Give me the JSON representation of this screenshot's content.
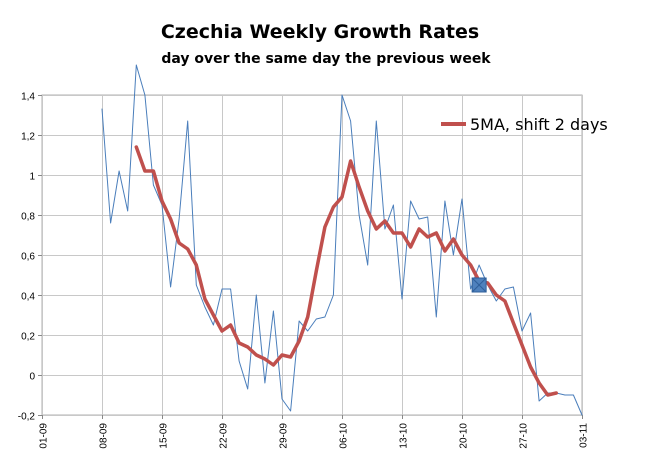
{
  "chart_data": {
    "type": "line",
    "title": "Czechia Weekly Growth Rates",
    "subtitle": "day over the same day the previous week",
    "xlabel": "",
    "ylabel": "",
    "ylim": [
      -0.2,
      1.4
    ],
    "yticks": [
      -0.2,
      0,
      0.2,
      0.4,
      0.6,
      0.8,
      1,
      1.2,
      1.4
    ],
    "ytick_labels": [
      "-0,2",
      "0",
      "0,2",
      "0,4",
      "0,6",
      "0,8",
      "1",
      "1,2",
      "1,4"
    ],
    "xlim": [
      0,
      63
    ],
    "xticks": [
      0,
      7,
      14,
      21,
      28,
      35,
      42,
      49,
      56,
      63
    ],
    "xtick_labels": [
      "01-09",
      "08-09",
      "15-09",
      "22-09",
      "29-09",
      "06-10",
      "13-10",
      "20-10",
      "27-10",
      "03-11"
    ],
    "grid": true,
    "legend": {
      "position": "top-right",
      "entries": [
        "5MA, shift 2 days"
      ]
    },
    "series": [
      {
        "name": "daily",
        "color": "#4a7ebb",
        "x": [
          7,
          8,
          9,
          10,
          11,
          12,
          13,
          14,
          15,
          16,
          17,
          18,
          19,
          20,
          21,
          22,
          23,
          24,
          25,
          26,
          27,
          28,
          29,
          30,
          31,
          32,
          33,
          34,
          35,
          36,
          37,
          38,
          39,
          40,
          41,
          42,
          43,
          44,
          45,
          46,
          47,
          48,
          49,
          50,
          51,
          52,
          53,
          54,
          55,
          56,
          57,
          58,
          59,
          60,
          61,
          62,
          63
        ],
        "values": [
          1.33,
          0.76,
          1.02,
          0.82,
          1.55,
          1.4,
          0.95,
          0.85,
          0.44,
          0.78,
          1.27,
          0.45,
          0.34,
          0.25,
          0.43,
          0.43,
          0.07,
          -0.07,
          0.4,
          -0.04,
          0.32,
          -0.12,
          -0.18,
          0.27,
          0.22,
          0.28,
          0.29,
          0.4,
          1.4,
          1.27,
          0.8,
          0.55,
          1.27,
          0.73,
          0.85,
          0.38,
          0.87,
          0.78,
          0.79,
          0.29,
          0.87,
          0.6,
          0.88,
          0.43,
          0.55,
          0.45,
          0.37,
          0.43,
          0.44,
          0.22,
          0.31,
          -0.13,
          -0.09,
          -0.09,
          -0.1,
          -0.1,
          -0.2
        ]
      },
      {
        "name": "5MA, shift 2 days",
        "color": "#c0504d",
        "x": [
          11,
          12,
          13,
          14,
          15,
          16,
          17,
          18,
          19,
          20,
          21,
          22,
          23,
          24,
          25,
          26,
          27,
          28,
          29,
          30,
          31,
          32,
          33,
          34,
          35,
          36,
          37,
          38,
          39,
          40,
          41,
          42,
          43,
          44,
          45,
          46,
          47,
          48,
          49,
          50,
          51,
          52,
          53,
          54,
          55,
          56,
          57,
          58,
          59,
          60
        ],
        "values": [
          1.14,
          1.02,
          1.02,
          0.87,
          0.78,
          0.66,
          0.63,
          0.55,
          0.38,
          0.3,
          0.22,
          0.25,
          0.16,
          0.14,
          0.1,
          0.08,
          0.05,
          0.1,
          0.09,
          0.17,
          0.29,
          0.52,
          0.74,
          0.84,
          0.89,
          1.07,
          0.94,
          0.82,
          0.73,
          0.77,
          0.71,
          0.71,
          0.64,
          0.73,
          0.69,
          0.71,
          0.62,
          0.68,
          0.6,
          0.55,
          0.47,
          0.46,
          0.4,
          0.37,
          0.26,
          0.15,
          0.04,
          -0.04,
          -0.1,
          -0.09
        ]
      }
    ],
    "annotations": [
      {
        "type": "square-marker",
        "x": 51,
        "y": 0.45,
        "color": "#4f81bd"
      }
    ]
  }
}
